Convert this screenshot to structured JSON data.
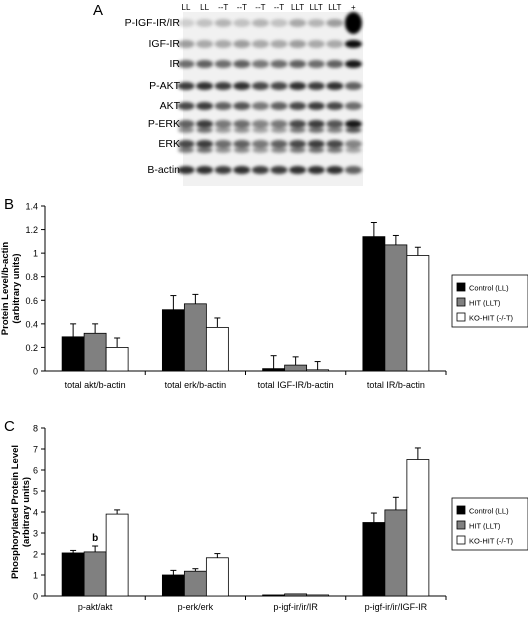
{
  "panels": {
    "blot": {
      "letter": "A",
      "lane_labels": [
        "LL",
        "LL",
        "--T",
        "--T",
        "--T",
        "--T",
        "LLT",
        "LLT",
        "LLT",
        "+"
      ],
      "rows": [
        {
          "label": "P-IGF-IR/IR"
        },
        {
          "label": "IGF-IR"
        },
        {
          "label": "IR"
        },
        {
          "label": "P-AKT"
        },
        {
          "label": "AKT"
        },
        {
          "label": "P-ERK"
        },
        {
          "label": "ERK"
        },
        {
          "label": "B-actin"
        }
      ]
    },
    "b_letter": "B",
    "c_letter": "C"
  },
  "chart_data": [
    {
      "type": "bar",
      "ylabel": "Protein Level/b-actin (arbitrary units)",
      "ylabel_lines": [
        "Protein Level/b-actin",
        "(arbitrary units)"
      ],
      "ylim": [
        0,
        1.4
      ],
      "yticks": [
        "0",
        "0.2",
        "0.4",
        "0.6",
        "0.8",
        "1",
        "1.2",
        "1.4"
      ],
      "categories": [
        "total akt/b-actin",
        "total erk/b-actin",
        "total IGF-IR/b-actin",
        "total IR/b-actin"
      ],
      "series": [
        {
          "name": "Control (LL)",
          "color": "#000000",
          "values": [
            0.29,
            0.52,
            0.02,
            1.14
          ],
          "errors": [
            0.11,
            0.12,
            0.11,
            0.12
          ]
        },
        {
          "name": "HIT (LLT)",
          "color": "#808080",
          "values": [
            0.32,
            0.57,
            0.05,
            1.07
          ],
          "errors": [
            0.08,
            0.08,
            0.07,
            0.08
          ]
        },
        {
          "name": "KO-HIT (-/-T)",
          "color": "#ffffff",
          "values": [
            0.2,
            0.37,
            0.01,
            0.98
          ],
          "errors": [
            0.08,
            0.08,
            0.07,
            0.07
          ]
        }
      ],
      "legend": "right",
      "grid": false
    },
    {
      "type": "bar",
      "ylabel": "Phosphorylated Protein Level (arbitrary units)",
      "ylabel_lines": [
        "Phosphorylated Protein Level",
        "(arbitrary units)"
      ],
      "ylim": [
        0,
        8
      ],
      "yticks": [
        "0",
        "1",
        "2",
        "3",
        "4",
        "5",
        "6",
        "7",
        "8"
      ],
      "categories": [
        "p-akt/akt",
        "p-erk/erk",
        "p-igf-ir/ir/IR",
        "p-igf-ir/ir/IGF-IR"
      ],
      "series": [
        {
          "name": "Control (LL)",
          "color": "#000000",
          "values": [
            2.05,
            1.0,
            0.05,
            3.5
          ],
          "errors": [
            0.12,
            0.22,
            0.0,
            0.45
          ]
        },
        {
          "name": "HIT (LLT)",
          "color": "#808080",
          "values": [
            2.1,
            1.18,
            0.1,
            4.1
          ],
          "errors": [
            0.28,
            0.12,
            0.0,
            0.6
          ]
        },
        {
          "name": "KO-HIT (-/-T)",
          "color": "#ffffff",
          "values": [
            3.9,
            1.82,
            0.05,
            6.5
          ],
          "errors": [
            0.2,
            0.2,
            0.0,
            0.55
          ]
        }
      ],
      "annotations": [
        {
          "category": 0,
          "series": 1,
          "text": "b"
        }
      ],
      "legend": "right",
      "grid": false
    }
  ]
}
